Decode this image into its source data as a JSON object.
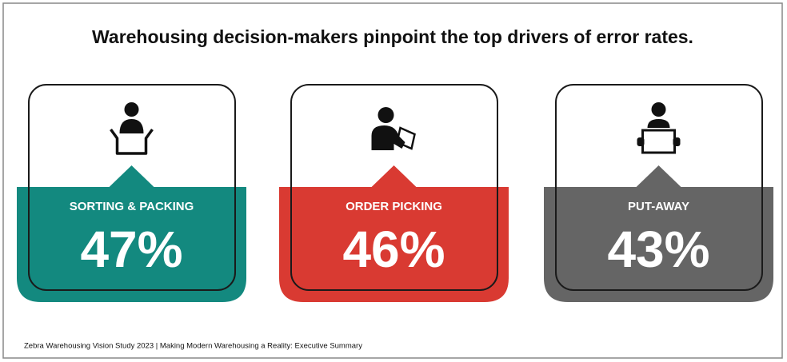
{
  "title": "Warehousing decision-makers pinpoint the top drivers of error rates.",
  "cards": [
    {
      "label": "SORTING & PACKING",
      "value": "47%",
      "color": "#13897f"
    },
    {
      "label": "ORDER PICKING",
      "value": "46%",
      "color": "#d93a32"
    },
    {
      "label": "PUT-AWAY",
      "value": "43%",
      "color": "#656565"
    }
  ],
  "footer": "Zebra Warehousing Vision Study 2023 | Making Modern Warehousing a Reality: Executive Summary"
}
